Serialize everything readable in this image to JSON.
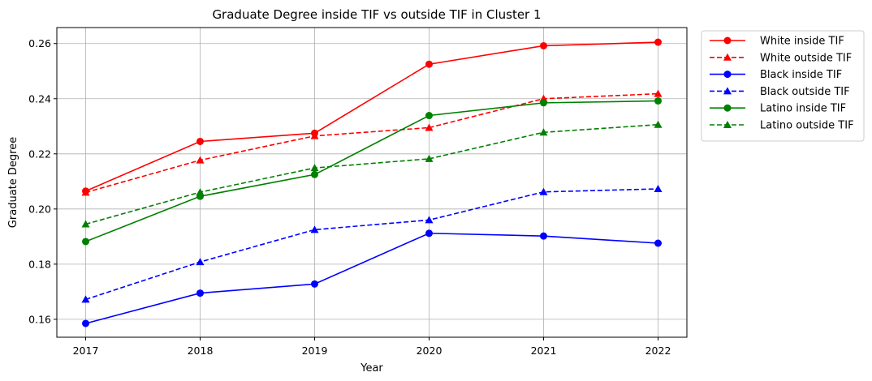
{
  "chart_data": {
    "type": "line",
    "title": "Graduate Degree inside TIF vs outside TIF in Cluster 1",
    "xlabel": "Year",
    "ylabel": "Graduate Degree",
    "categories": [
      "2017",
      "2018",
      "2019",
      "2020",
      "2021",
      "2022"
    ],
    "y_ticks": [
      "0.16",
      "0.18",
      "0.20",
      "0.22",
      "0.24",
      "0.26"
    ],
    "ylim": [
      0.1535,
      0.2658
    ],
    "grid": true,
    "legend_position": "outside-upper-right",
    "series": [
      {
        "name": "White inside TIF",
        "color": "#ff0000",
        "style": "solid",
        "marker": "circle",
        "values": [
          0.2065,
          0.2245,
          0.2275,
          0.2525,
          0.2592,
          0.2605
        ]
      },
      {
        "name": "White outside TIF",
        "color": "#ff0000",
        "style": "dashed",
        "marker": "triangle",
        "values": [
          0.206,
          0.2177,
          0.2265,
          0.2295,
          0.24,
          0.2418
        ]
      },
      {
        "name": "Black inside TIF",
        "color": "#0000ff",
        "style": "solid",
        "marker": "circle",
        "values": [
          0.1585,
          0.1695,
          0.1728,
          0.1912,
          0.1902,
          0.1876
        ]
      },
      {
        "name": "Black outside TIF",
        "color": "#0000ff",
        "style": "dashed",
        "marker": "triangle",
        "values": [
          0.1672,
          0.1808,
          0.1925,
          0.196,
          0.2062,
          0.2073
        ]
      },
      {
        "name": "Latino inside TIF",
        "color": "#008000",
        "style": "solid",
        "marker": "circle",
        "values": [
          0.1882,
          0.2046,
          0.2125,
          0.2339,
          0.2385,
          0.2392
        ]
      },
      {
        "name": "Latino outside TIF",
        "color": "#008000",
        "style": "dashed",
        "marker": "triangle",
        "values": [
          0.1945,
          0.2061,
          0.2149,
          0.2182,
          0.2278,
          0.2306
        ]
      }
    ]
  }
}
